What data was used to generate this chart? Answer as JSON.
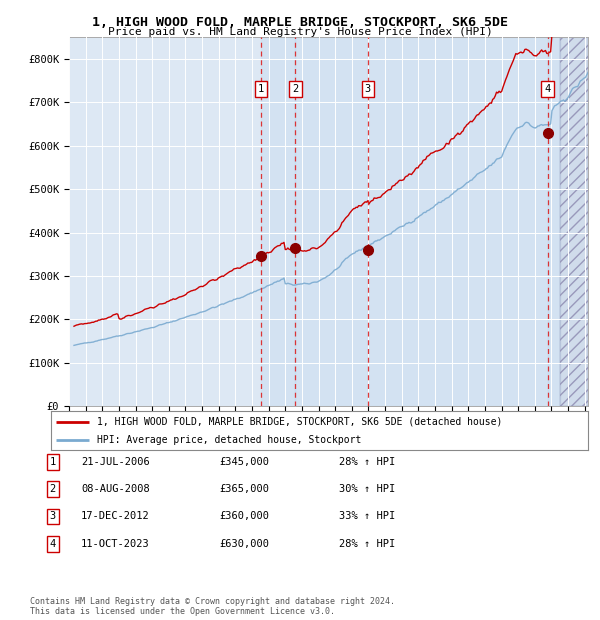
{
  "title": "1, HIGH WOOD FOLD, MARPLE BRIDGE, STOCKPORT, SK6 5DE",
  "subtitle": "Price paid vs. HM Land Registry's House Price Index (HPI)",
  "hpi_color": "#7aaad0",
  "price_color": "#cc0000",
  "bg_color": "#dde8f4",
  "sale_bg_color": "#ccdff0",
  "ylim": [
    0,
    850000
  ],
  "yticks": [
    0,
    100000,
    200000,
    300000,
    400000,
    500000,
    600000,
    700000,
    800000
  ],
  "ytick_labels": [
    "£0",
    "£100K",
    "£200K",
    "£300K",
    "£400K",
    "£500K",
    "£600K",
    "£700K",
    "£800K"
  ],
  "xmin": 1995.3,
  "xmax": 2026.2,
  "sales": [
    {
      "num": 1,
      "year": 2006.55,
      "price": 345000,
      "pct": "28%",
      "label": "21-JUL-2006",
      "price_str": "£345,000"
    },
    {
      "num": 2,
      "year": 2008.61,
      "price": 365000,
      "pct": "30%",
      "label": "08-AUG-2008",
      "price_str": "£365,000"
    },
    {
      "num": 3,
      "year": 2012.96,
      "price": 360000,
      "pct": "33%",
      "label": "17-DEC-2012",
      "price_str": "£360,000"
    },
    {
      "num": 4,
      "year": 2023.78,
      "price": 630000,
      "pct": "28%",
      "label": "11-OCT-2023",
      "price_str": "£630,000"
    }
  ],
  "legend_line1": "1, HIGH WOOD FOLD, MARPLE BRIDGE, STOCKPORT, SK6 5DE (detached house)",
  "legend_line2": "HPI: Average price, detached house, Stockport",
  "footnote1": "Contains HM Land Registry data © Crown copyright and database right 2024.",
  "footnote2": "This data is licensed under the Open Government Licence v3.0.",
  "future_start": 2024.5
}
